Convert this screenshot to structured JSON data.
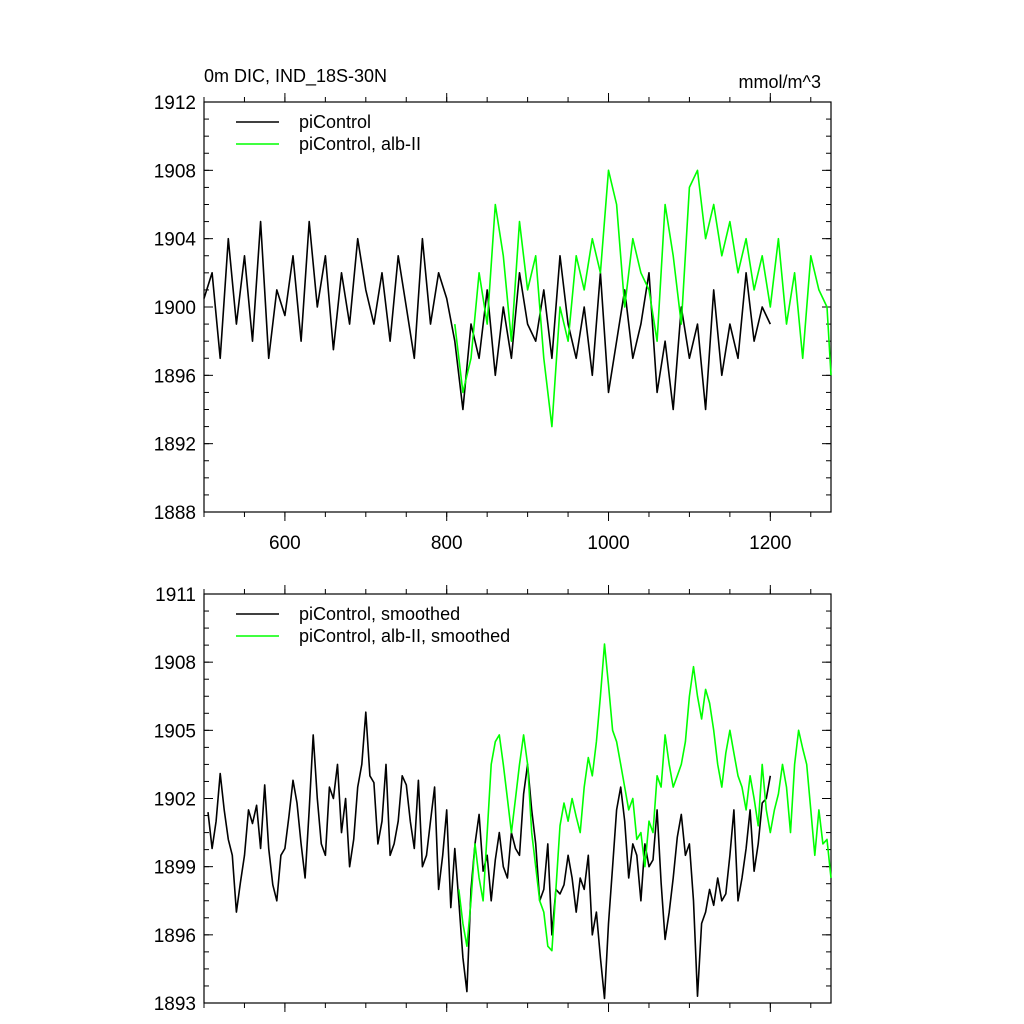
{
  "chart_data": [
    {
      "type": "line",
      "title": "0m DIC, IND_18S-30N",
      "units": "mmol/m^3",
      "xlim": [
        500,
        1275
      ],
      "ylim": [
        1888,
        1912
      ],
      "x_ticks": [
        600,
        800,
        1000,
        1200
      ],
      "x_tick_labels": [
        "600",
        "800",
        "1000",
        "1200"
      ],
      "y_ticks": [
        1888,
        1892,
        1896,
        1900,
        1904,
        1908,
        1912
      ],
      "y_tick_labels": [
        "1888",
        "1892",
        "1896",
        "1900",
        "1904",
        "1908",
        "1912"
      ],
      "legend_position": "top-left",
      "grid": false,
      "series": [
        {
          "name": "piControl",
          "color": "#000000",
          "x": [
            500,
            510,
            520,
            530,
            540,
            550,
            560,
            570,
            580,
            590,
            600,
            610,
            620,
            630,
            640,
            650,
            660,
            670,
            680,
            690,
            700,
            710,
            720,
            730,
            740,
            750,
            760,
            770,
            780,
            790,
            800,
            810,
            820,
            830,
            840,
            850,
            860,
            870,
            880,
            890,
            900,
            910,
            920,
            930,
            940,
            950,
            960,
            970,
            980,
            990,
            1000,
            1010,
            1020,
            1030,
            1040,
            1050,
            1060,
            1070,
            1080,
            1090,
            1100,
            1110,
            1120,
            1130,
            1140,
            1150,
            1160,
            1170,
            1180,
            1190,
            1200
          ],
          "y": [
            1900.5,
            1902,
            1897,
            1904,
            1899,
            1903,
            1898,
            1905,
            1897,
            1901,
            1899.5,
            1903,
            1898,
            1905,
            1900,
            1903,
            1897.5,
            1902,
            1899,
            1904,
            1901,
            1899,
            1902,
            1898,
            1903,
            1900,
            1897,
            1904,
            1899,
            1902,
            1900.5,
            1898,
            1894,
            1899,
            1897,
            1901,
            1896,
            1900,
            1897,
            1902,
            1899,
            1898,
            1901,
            1897,
            1903,
            1899,
            1897,
            1900,
            1896,
            1902,
            1895,
            1898,
            1901,
            1897,
            1899,
            1902,
            1895,
            1898,
            1894,
            1900,
            1897,
            1899,
            1894,
            1901,
            1896,
            1899,
            1897,
            1902,
            1898,
            1900,
            1899
          ]
        },
        {
          "name": "piControl, alb-II",
          "color": "#00ff00",
          "x": [
            810,
            820,
            830,
            840,
            850,
            860,
            870,
            880,
            890,
            900,
            910,
            920,
            930,
            940,
            950,
            960,
            970,
            980,
            990,
            1000,
            1010,
            1020,
            1030,
            1040,
            1050,
            1060,
            1070,
            1080,
            1090,
            1100,
            1110,
            1120,
            1130,
            1140,
            1150,
            1160,
            1170,
            1180,
            1190,
            1200,
            1210,
            1220,
            1230,
            1240,
            1250,
            1260,
            1270,
            1275
          ],
          "y": [
            1899,
            1895,
            1897,
            1902,
            1899,
            1906,
            1903,
            1898,
            1905,
            1901,
            1903,
            1897,
            1893,
            1900,
            1898,
            1903,
            1901,
            1904,
            1902,
            1908,
            1906,
            1900,
            1904,
            1902,
            1901,
            1898,
            1906,
            1903,
            1899,
            1907,
            1908,
            1904,
            1906,
            1903,
            1905,
            1902,
            1904,
            1901,
            1903,
            1900,
            1904,
            1899,
            1902,
            1897,
            1903,
            1901,
            1900,
            1896
          ]
        }
      ]
    },
    {
      "type": "line",
      "title": "",
      "xlim": [
        500,
        1275
      ],
      "ylim": [
        1893,
        1911
      ],
      "x_ticks": [
        600,
        800,
        1000,
        1200
      ],
      "x_tick_labels": [],
      "y_ticks": [
        1893,
        1896,
        1899,
        1902,
        1905,
        1908,
        1911
      ],
      "y_tick_labels": [
        "1893",
        "1896",
        "1899",
        "1902",
        "1905",
        "1908",
        "1911"
      ],
      "legend_position": "top-left",
      "grid": false,
      "series": [
        {
          "name": "piControl, smoothed",
          "color": "#000000",
          "x": [
            505,
            510,
            515,
            520,
            525,
            530,
            535,
            540,
            545,
            550,
            555,
            560,
            565,
            570,
            575,
            580,
            585,
            590,
            595,
            600,
            605,
            610,
            615,
            620,
            625,
            630,
            635,
            640,
            645,
            650,
            655,
            660,
            665,
            670,
            675,
            680,
            685,
            690,
            695,
            700,
            705,
            710,
            715,
            720,
            725,
            730,
            735,
            740,
            745,
            750,
            755,
            760,
            765,
            770,
            775,
            780,
            785,
            790,
            795,
            800,
            805,
            810,
            815,
            820,
            825,
            830,
            835,
            840,
            845,
            850,
            855,
            860,
            865,
            870,
            875,
            880,
            885,
            890,
            895,
            900,
            905,
            910,
            915,
            920,
            925,
            930,
            935,
            940,
            945,
            950,
            955,
            960,
            965,
            970,
            975,
            980,
            985,
            990,
            995,
            1000,
            1005,
            1010,
            1015,
            1020,
            1025,
            1030,
            1035,
            1040,
            1045,
            1050,
            1055,
            1060,
            1065,
            1070,
            1075,
            1080,
            1085,
            1090,
            1095,
            1100,
            1105,
            1110,
            1115,
            1120,
            1125,
            1130,
            1135,
            1140,
            1145,
            1150,
            1155,
            1160,
            1165,
            1170,
            1175,
            1180,
            1185,
            1190,
            1195,
            1200
          ],
          "y": [
            1901.4,
            1899.8,
            1901,
            1903.1,
            1901.5,
            1900.2,
            1899.5,
            1897,
            1898.3,
            1899.5,
            1901.5,
            1900.9,
            1901.7,
            1899.8,
            1902.6,
            1899.8,
            1898.2,
            1897.5,
            1899.5,
            1899.8,
            1901.2,
            1902.8,
            1901.8,
            1900,
            1898.5,
            1901.5,
            1904.8,
            1902,
            1900,
            1899.5,
            1902.5,
            1902,
            1903.5,
            1900.5,
            1902,
            1899,
            1900.2,
            1902.5,
            1903.5,
            1905.8,
            1903,
            1902.7,
            1900,
            1901,
            1903.5,
            1899.5,
            1900,
            1901,
            1903,
            1902.6,
            1901,
            1899.8,
            1902.8,
            1899,
            1899.5,
            1901,
            1902.5,
            1898,
            1899.5,
            1901.5,
            1897.2,
            1899.8,
            1897.5,
            1895,
            1893.5,
            1898,
            1900,
            1901.3,
            1898.8,
            1899.5,
            1897.5,
            1899.3,
            1900.5,
            1899,
            1898.5,
            1900.5,
            1899.8,
            1899.5,
            1902.2,
            1903.5,
            1901.5,
            1900,
            1897.5,
            1898,
            1900,
            1896,
            1898,
            1897.8,
            1898.2,
            1899.5,
            1898.5,
            1897,
            1898.5,
            1898,
            1899.5,
            1896,
            1897,
            1895,
            1893.2,
            1896.5,
            1899,
            1901.5,
            1902.5,
            1901,
            1898.5,
            1900,
            1899.5,
            1897.5,
            1900,
            1899,
            1899.3,
            1901.5,
            1898.3,
            1895.8,
            1897,
            1898.5,
            1900.3,
            1901.3,
            1899.5,
            1900,
            1897.5,
            1893.3,
            1896.5,
            1897,
            1898,
            1897.3,
            1898.5,
            1897.5,
            1897.8,
            1899.5,
            1901.5,
            1897.5,
            1898.5,
            1899.8,
            1901.5,
            1898.8,
            1900,
            1901.8,
            1902,
            1903
          ]
        },
        {
          "name": "piControl, alb-II, smoothed",
          "color": "#00ff00",
          "x": [
            815,
            820,
            825,
            830,
            835,
            840,
            845,
            850,
            855,
            860,
            865,
            870,
            875,
            880,
            885,
            890,
            895,
            900,
            905,
            910,
            915,
            920,
            925,
            930,
            935,
            940,
            945,
            950,
            955,
            960,
            965,
            970,
            975,
            980,
            985,
            990,
            995,
            1000,
            1005,
            1010,
            1015,
            1020,
            1025,
            1030,
            1035,
            1040,
            1045,
            1050,
            1055,
            1060,
            1065,
            1070,
            1075,
            1080,
            1085,
            1090,
            1095,
            1100,
            1105,
            1110,
            1115,
            1120,
            1125,
            1130,
            1135,
            1140,
            1145,
            1150,
            1155,
            1160,
            1165,
            1170,
            1175,
            1180,
            1185,
            1190,
            1195,
            1200,
            1205,
            1210,
            1215,
            1220,
            1225,
            1230,
            1235,
            1240,
            1245,
            1250,
            1255,
            1260,
            1265,
            1270,
            1275
          ],
          "y": [
            1898,
            1896.5,
            1895.5,
            1897.5,
            1900,
            1898.5,
            1897.5,
            1900.5,
            1903.5,
            1904.5,
            1904.8,
            1903.5,
            1902,
            1900.5,
            1902,
            1903.5,
            1904.8,
            1903.5,
            1900.5,
            1899,
            1897.5,
            1897,
            1895.5,
            1895.3,
            1898,
            1900.8,
            1901.8,
            1901,
            1902,
            1901.2,
            1900.5,
            1902.5,
            1903.8,
            1903,
            1904.5,
            1906.5,
            1908.8,
            1907,
            1905,
            1904.5,
            1903.5,
            1902.5,
            1901.5,
            1902,
            1900.2,
            1900.5,
            1899,
            1901,
            1900.5,
            1903,
            1902.5,
            1904.8,
            1903.5,
            1902.5,
            1903,
            1903.5,
            1904.5,
            1906.5,
            1907.8,
            1906.5,
            1905.5,
            1906.8,
            1906.2,
            1905,
            1903.5,
            1902.5,
            1904,
            1905,
            1904,
            1903,
            1902.5,
            1901.5,
            1903,
            1902,
            1900.8,
            1903.5,
            1901.5,
            1900.5,
            1901.5,
            1902.2,
            1903.5,
            1902.5,
            1900.5,
            1903.5,
            1905,
            1904.2,
            1903.5,
            1901.5,
            1899.5,
            1901.5,
            1900,
            1900.2,
            1898.5
          ]
        }
      ]
    }
  ]
}
